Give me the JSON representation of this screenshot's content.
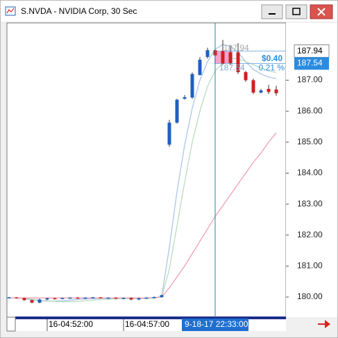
{
  "window": {
    "title": "S.NVDA - NVIDIA Corp, 30 Sec"
  },
  "chart_data": {
    "type": "candlestick",
    "categories": [
      null,
      null,
      null,
      null,
      null,
      "16-04:52:00",
      null,
      null,
      null,
      null,
      null,
      null,
      null,
      null,
      null,
      "16-04:57:00",
      null,
      null,
      null,
      null,
      null,
      null,
      null,
      null,
      null,
      null,
      null,
      null,
      null,
      null,
      null,
      null,
      null,
      null,
      null,
      null
    ],
    "open": [
      179.98,
      179.99,
      179.97,
      179.9,
      179.82,
      179.92,
      179.96,
      179.95,
      179.97,
      179.98,
      179.97,
      179.98,
      179.99,
      179.97,
      179.98,
      179.95,
      179.97,
      179.92,
      179.96,
      179.98,
      180.0,
      184.92,
      185.63,
      186.4,
      186.44,
      187.17,
      187.75,
      187.97,
      187.94,
      187.9,
      187.9,
      187.26,
      187.0,
      186.6,
      186.72,
      186.7
    ],
    "high": [
      180.0,
      180.0,
      179.98,
      179.92,
      179.95,
      179.98,
      179.98,
      179.98,
      179.99,
      180.0,
      179.99,
      180.0,
      180.0,
      179.99,
      179.99,
      179.98,
      179.99,
      179.98,
      179.99,
      180.02,
      180.08,
      185.72,
      186.4,
      186.52,
      187.25,
      187.75,
      188.05,
      188.45,
      188.3,
      188.1,
      188.2,
      187.3,
      187.05,
      186.72,
      186.85,
      186.82
    ],
    "low": [
      179.96,
      179.97,
      179.88,
      179.8,
      179.8,
      179.9,
      179.94,
      179.93,
      179.95,
      179.96,
      179.95,
      179.96,
      179.96,
      179.95,
      179.94,
      179.93,
      179.9,
      179.9,
      179.95,
      179.96,
      179.98,
      184.85,
      185.6,
      186.38,
      186.4,
      187.15,
      187.7,
      187.6,
      187.5,
      187.5,
      187.2,
      186.95,
      186.55,
      186.58,
      186.55,
      186.5
    ],
    "close": [
      179.99,
      179.98,
      179.9,
      179.82,
      179.92,
      179.96,
      179.95,
      179.97,
      179.98,
      179.97,
      179.98,
      179.99,
      179.97,
      179.98,
      179.95,
      179.97,
      179.92,
      179.96,
      179.98,
      180.0,
      180.06,
      185.63,
      186.37,
      186.45,
      187.2,
      187.66,
      187.97,
      187.8,
      187.54,
      187.55,
      187.26,
      187.0,
      186.6,
      186.67,
      186.62,
      186.58
    ],
    "up_color": "#1f5fc4",
    "down_color": "#cc2222",
    "lines": [
      {
        "color": "#a9c6e8",
        "values": [
          179.97,
          179.97,
          179.95,
          179.9,
          179.88,
          179.87,
          179.87,
          179.88,
          179.9,
          179.92,
          179.94,
          179.95,
          179.96,
          179.96,
          179.96,
          179.96,
          179.95,
          179.95,
          179.96,
          179.97,
          180.02,
          181.6,
          183.4,
          184.9,
          186.1,
          187.0,
          187.6,
          188.0,
          188.15,
          188.1,
          187.9,
          187.6,
          187.35,
          187.2,
          187.1,
          187.05
        ]
      },
      {
        "color": "#b9dcc0",
        "values": [
          179.97,
          179.97,
          179.96,
          179.93,
          179.9,
          179.88,
          179.86,
          179.85,
          179.85,
          179.86,
          179.88,
          179.9,
          179.92,
          179.93,
          179.94,
          179.95,
          179.95,
          179.95,
          179.95,
          179.96,
          180.0,
          180.9,
          182.3,
          183.7,
          185.0,
          186.0,
          186.8,
          187.3,
          187.55,
          187.7,
          187.7,
          187.6,
          187.5,
          187.4,
          187.3,
          187.25
        ]
      },
      {
        "color": "#f0a0b4",
        "values": [
          179.97,
          179.97,
          179.97,
          179.97,
          179.97,
          179.97,
          179.97,
          179.97,
          179.97,
          179.97,
          179.97,
          179.97,
          179.97,
          179.97,
          179.97,
          179.97,
          179.97,
          179.97,
          179.97,
          179.98,
          180.0,
          180.3,
          180.65,
          181.0,
          181.4,
          181.8,
          182.2,
          182.6,
          182.95,
          183.3,
          183.65,
          184.0,
          184.35,
          184.65,
          185.0,
          185.3
        ]
      }
    ],
    "ylim": [
      179.35,
      188.85
    ],
    "yticks": [
      {
        "value": 180,
        "label": "180.00"
      },
      {
        "value": 181,
        "label": "181.00"
      },
      {
        "value": 182,
        "label": "182.00"
      },
      {
        "value": 183,
        "label": "183.00"
      },
      {
        "value": 184,
        "label": "184.00"
      },
      {
        "value": 185,
        "label": "185.00"
      },
      {
        "value": 186,
        "label": "186.00"
      },
      {
        "value": 187,
        "label": "187.00"
      }
    ],
    "price_markers": [
      187.94,
      187.54
    ],
    "crosshair_label": "9-18-17 22:33:00",
    "measure": {
      "change": "$0.40",
      "percent": "0.21 %",
      "high_label": "187.94",
      "low_label": "187.54"
    }
  }
}
